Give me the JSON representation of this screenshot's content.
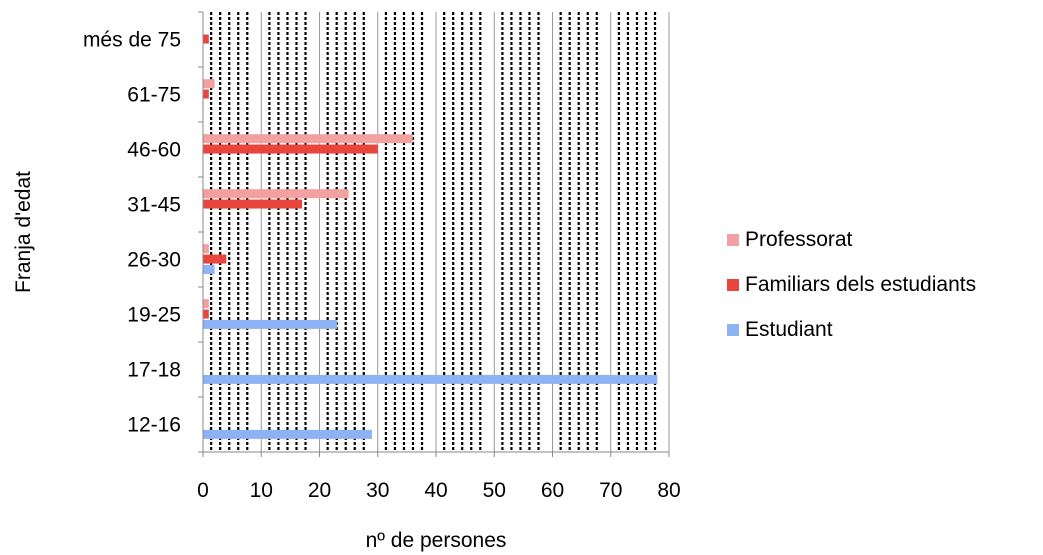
{
  "chart_data": {
    "type": "bar",
    "orientation": "horizontal",
    "title": "",
    "xlabel": "nº de persones",
    "ylabel": "Franja d'edat",
    "categories": [
      "12-16",
      "17-18",
      "19-25",
      "26-30",
      "31-45",
      "46-60",
      "61-75",
      "més de 75"
    ],
    "xlim": [
      0,
      80
    ],
    "xticks": [
      "0",
      "10",
      "20",
      "30",
      "40",
      "50",
      "60",
      "70",
      "80"
    ],
    "grid": "vertical dotted",
    "legend_position": "right",
    "series": [
      {
        "name": "Estudiant",
        "color": "#8db3f5",
        "values": [
          29,
          78,
          23,
          2,
          0,
          0,
          0,
          0
        ]
      },
      {
        "name": "Familiars dels estudiants",
        "color": "#e8453c",
        "values": [
          0,
          0,
          1,
          4,
          17,
          30,
          1,
          1
        ]
      },
      {
        "name": "Professorat",
        "color": "#f2a0a0",
        "values": [
          0,
          0,
          1,
          1,
          25,
          36,
          2,
          0
        ]
      }
    ]
  }
}
